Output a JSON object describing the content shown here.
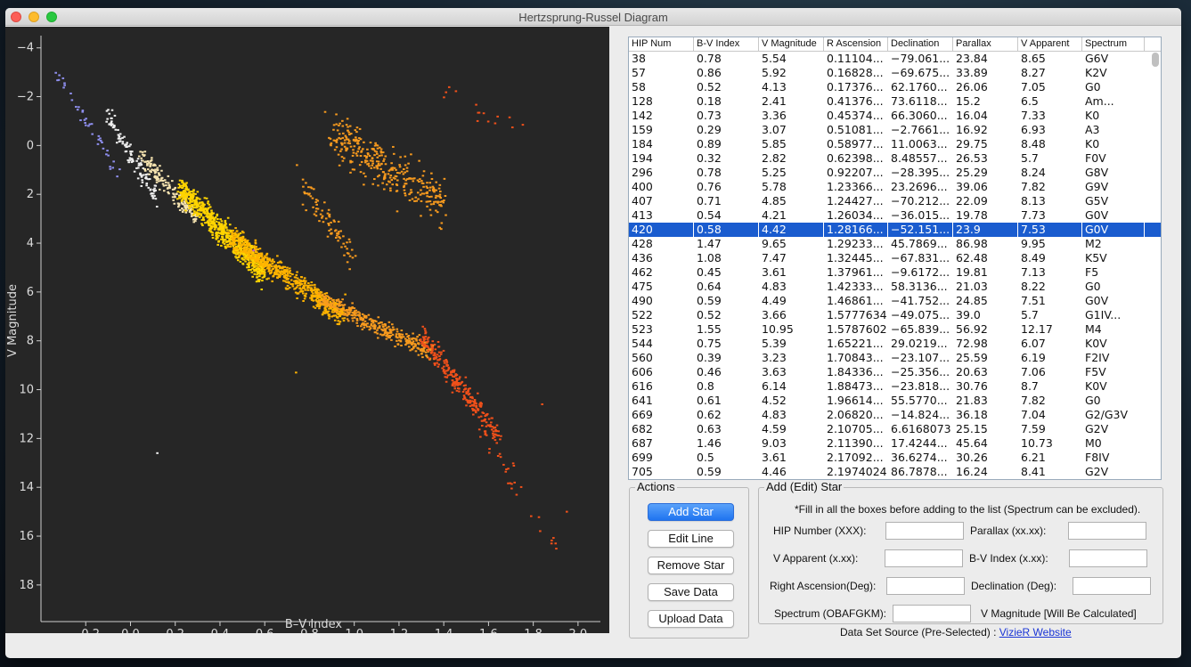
{
  "window": {
    "title": "Hertzsprung-Russel Diagram"
  },
  "chart_data": {
    "type": "scatter",
    "xlabel": "B–V Index",
    "ylabel": "V  Magnitude",
    "xlim": [
      -0.4,
      2.1
    ],
    "ylim": [
      19.5,
      -4.5
    ],
    "y_inverted": true,
    "grid": false,
    "x_ticks": [
      "−0.2",
      "0.0",
      "0.2",
      "0.4",
      "0.6",
      "0.8",
      "1.0",
      "1.2",
      "1.4",
      "1.6",
      "1.8",
      "2.0"
    ],
    "x_tick_values": [
      -0.2,
      0.0,
      0.2,
      0.4,
      0.6,
      0.8,
      1.0,
      1.2,
      1.4,
      1.6,
      1.8,
      2.0
    ],
    "y_ticks": [
      "−4",
      "−2",
      "0",
      "2",
      "4",
      "6",
      "8",
      "10",
      "12",
      "14",
      "16",
      "18"
    ],
    "y_tick_values": [
      -4,
      -2,
      0,
      2,
      4,
      6,
      8,
      10,
      12,
      14,
      16,
      18
    ],
    "colors": {
      "background": "#262626",
      "blue": "#8f8fef",
      "white": "#f0f0f0",
      "cream": "#f5e3b0",
      "yellow": "#ffd400",
      "gold": "#ffb300",
      "orange": "#f79a1e",
      "redorange": "#f0501a"
    },
    "regions": [
      {
        "name": "blue-giants",
        "color": "blue",
        "count": 40,
        "bv": [
          -0.33,
          -0.05
        ],
        "mag": [
          -3.0,
          1.2
        ],
        "spread": 0.5
      },
      {
        "name": "white-upper",
        "color": "white",
        "count": 110,
        "bv": [
          -0.1,
          0.12
        ],
        "mag": [
          -1.2,
          2.2
        ],
        "spread": 0.6
      },
      {
        "name": "cream",
        "color": "cream",
        "count": 160,
        "bv": [
          0.05,
          0.3
        ],
        "mag": [
          0.5,
          3.0
        ],
        "spread": 0.6
      },
      {
        "name": "yellow-ms",
        "color": "yellow",
        "count": 700,
        "bv": [
          0.22,
          0.6
        ],
        "mag": [
          1.8,
          5.2
        ],
        "spread": 0.9
      },
      {
        "name": "gold-ms",
        "color": "gold",
        "count": 600,
        "bv": [
          0.45,
          0.95
        ],
        "mag": [
          3.8,
          7.0
        ],
        "spread": 0.8
      },
      {
        "name": "orange-ms",
        "color": "orange",
        "count": 350,
        "bv": [
          0.85,
          1.35
        ],
        "mag": [
          6.3,
          8.5
        ],
        "spread": 0.6
      },
      {
        "name": "red-dwarfs",
        "color": "redorange",
        "count": 260,
        "bv": [
          1.3,
          1.65
        ],
        "mag": [
          7.8,
          12.0
        ],
        "spread": 0.8
      },
      {
        "name": "red-tail",
        "color": "redorange",
        "count": 30,
        "bv": [
          1.55,
          1.9
        ],
        "mag": [
          11.5,
          16.5
        ],
        "spread": 1.0
      },
      {
        "name": "red-giants",
        "color": "orange",
        "count": 330,
        "bv": [
          0.9,
          1.4
        ],
        "mag": [
          -0.5,
          2.5
        ],
        "spread": 1.6
      },
      {
        "name": "giant-branch",
        "color": "orange",
        "count": 80,
        "bv": [
          0.75,
          1.0
        ],
        "mag": [
          1.5,
          4.5
        ],
        "spread": 1.0
      },
      {
        "name": "supergiants",
        "color": "redorange",
        "count": 15,
        "bv": [
          1.4,
          1.75
        ],
        "mag": [
          -2.2,
          -0.5
        ],
        "spread": 0.8
      }
    ],
    "outliers": [
      {
        "bv": 0.12,
        "mag": 12.6,
        "color": "white"
      },
      {
        "bv": 0.55,
        "mag": 4.3,
        "color": "#c060c0"
      },
      {
        "bv": 0.96,
        "mag": 6.1,
        "color": "gold"
      },
      {
        "bv": 1.84,
        "mag": 10.6,
        "color": "redorange"
      },
      {
        "bv": 1.95,
        "mag": 15.0,
        "color": "redorange"
      },
      {
        "bv": 1.9,
        "mag": 16.3,
        "color": "redorange"
      },
      {
        "bv": 0.74,
        "mag": 9.3,
        "color": "gold"
      }
    ]
  },
  "table": {
    "columns": [
      "HIP Num",
      "B-V Index",
      "V Magnitude",
      "R Ascension",
      "Declination",
      "Parallax",
      "V Apparent",
      "Spectrum"
    ],
    "selected_index": 12,
    "rows": [
      [
        "38",
        "0.78",
        "5.54",
        "0.11104...",
        "−79.061...",
        "23.84",
        "8.65",
        "G6V"
      ],
      [
        "57",
        "0.86",
        "5.92",
        "0.16828...",
        "−69.675...",
        "33.89",
        "8.27",
        "K2V"
      ],
      [
        "58",
        "0.52",
        "4.13",
        "0.17376...",
        "62.1760...",
        "26.06",
        "7.05",
        "G0"
      ],
      [
        "128",
        "0.18",
        "2.41",
        "0.41376...",
        "73.6118...",
        "15.2",
        "6.5",
        "Am..."
      ],
      [
        "142",
        "0.73",
        "3.36",
        "0.45374...",
        "66.3060...",
        "16.04",
        "7.33",
        "K0"
      ],
      [
        "159",
        "0.29",
        "3.07",
        "0.51081...",
        "−2.7661...",
        "16.92",
        "6.93",
        "A3"
      ],
      [
        "184",
        "0.89",
        "5.85",
        "0.58977...",
        "11.0063...",
        "29.75",
        "8.48",
        "K0"
      ],
      [
        "194",
        "0.32",
        "2.82",
        "0.62398...",
        "8.48557...",
        "26.53",
        "5.7",
        "F0V"
      ],
      [
        "296",
        "0.78",
        "5.25",
        "0.92207...",
        "−28.395...",
        "25.29",
        "8.24",
        "G8V"
      ],
      [
        "400",
        "0.76",
        "5.78",
        "1.23366...",
        "23.2696...",
        "39.06",
        "7.82",
        "G9V"
      ],
      [
        "407",
        "0.71",
        "4.85",
        "1.24427...",
        "−70.212...",
        "22.09",
        "8.13",
        "G5V"
      ],
      [
        "413",
        "0.54",
        "4.21",
        "1.26034...",
        "−36.015...",
        "19.78",
        "7.73",
        "G0V"
      ],
      [
        "420",
        "0.58",
        "4.42",
        "1.28166...",
        "−52.151...",
        "23.9",
        "7.53",
        "G0V"
      ],
      [
        "428",
        "1.47",
        "9.65",
        "1.29233...",
        "45.7869...",
        "86.98",
        "9.95",
        "M2"
      ],
      [
        "436",
        "1.08",
        "7.47",
        "1.32445...",
        "−67.831...",
        "62.48",
        "8.49",
        "K5V"
      ],
      [
        "462",
        "0.45",
        "3.61",
        "1.37961...",
        "−9.6172...",
        "19.81",
        "7.13",
        "F5"
      ],
      [
        "475",
        "0.64",
        "4.83",
        "1.42333...",
        "58.3136...",
        "21.03",
        "8.22",
        "G0"
      ],
      [
        "490",
        "0.59",
        "4.49",
        "1.46861...",
        "−41.752...",
        "24.85",
        "7.51",
        "G0V"
      ],
      [
        "522",
        "0.52",
        "3.66",
        "1.5777634",
        "−49.075...",
        "39.0",
        "5.7",
        "G1IV..."
      ],
      [
        "523",
        "1.55",
        "10.95",
        "1.5787602",
        "−65.839...",
        "56.92",
        "12.17",
        "M4"
      ],
      [
        "544",
        "0.75",
        "5.39",
        "1.65221...",
        "29.0219...",
        "72.98",
        "6.07",
        "K0V"
      ],
      [
        "560",
        "0.39",
        "3.23",
        "1.70843...",
        "−23.107...",
        "25.59",
        "6.19",
        "F2IV"
      ],
      [
        "606",
        "0.46",
        "3.63",
        "1.84336...",
        "−25.356...",
        "20.63",
        "7.06",
        "F5V"
      ],
      [
        "616",
        "0.8",
        "6.14",
        "1.88473...",
        "−23.818...",
        "30.76",
        "8.7",
        "K0V"
      ],
      [
        "641",
        "0.61",
        "4.52",
        "1.96614...",
        "55.5770...",
        "21.83",
        "7.82",
        "G0"
      ],
      [
        "669",
        "0.62",
        "4.83",
        "2.06820...",
        "−14.824...",
        "36.18",
        "7.04",
        "G2/G3V"
      ],
      [
        "682",
        "0.63",
        "4.59",
        "2.10705...",
        "6.6168073",
        "25.15",
        "7.59",
        "G2V"
      ],
      [
        "687",
        "1.46",
        "9.03",
        "2.11390...",
        "17.4244...",
        "45.64",
        "10.73",
        "M0"
      ],
      [
        "699",
        "0.5",
        "3.61",
        "2.17092...",
        "36.6274...",
        "30.26",
        "6.21",
        "F8IV"
      ],
      [
        "705",
        "0.59",
        "4.46",
        "2.1974024",
        "86.7878...",
        "16.24",
        "8.41",
        "G2V"
      ]
    ]
  },
  "actions": {
    "title": "Actions",
    "add_star": "Add Star",
    "edit_line": "Edit Line",
    "remove_star": "Remove Star",
    "save_data": "Save Data",
    "upload_data": "Upload Data"
  },
  "form": {
    "title": "Add (Edit) Star",
    "note": "*Fill in all the boxes before adding to the list (Spectrum can be excluded).",
    "hip_label": "HIP Number (XXX):",
    "parallax_label": "Parallax (xx.xx):",
    "vapp_label": "V Apparent (x.xx):",
    "bv_label": "B-V Index (x.xx):",
    "ra_label": "Right Ascension(Deg):",
    "dec_label": "Declination (Deg):",
    "spectrum_label": "Spectrum (OBAFGKM):",
    "vmag_label": "V Magnitude  [Will Be Calculated]",
    "hip_value": "",
    "parallax_value": "",
    "vapp_value": "",
    "bv_value": "",
    "ra_value": "",
    "dec_value": "",
    "spectrum_value": ""
  },
  "footer": {
    "source_text": "Data Set Source (Pre-Selected) : ",
    "link_text": "VizieR Website"
  }
}
